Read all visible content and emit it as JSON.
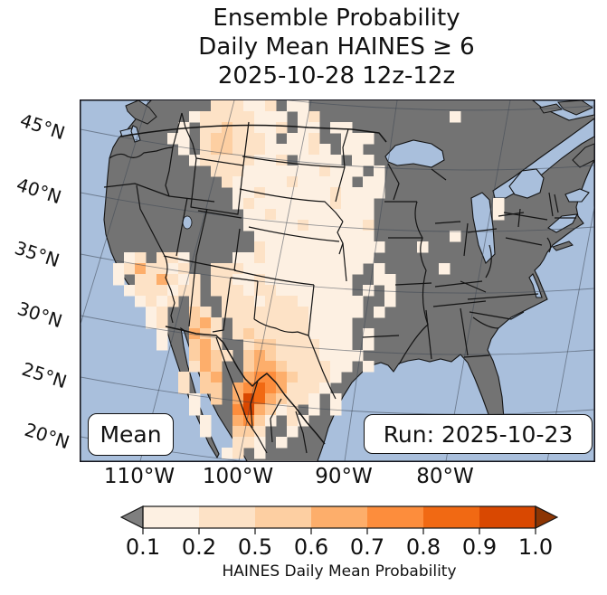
{
  "title": {
    "line1": "Ensemble Probability",
    "line2": "Daily Mean HAINES ≥ 6",
    "line3": "2025-10-28 12z-12z"
  },
  "map": {
    "mean_label": "Mean",
    "run_label": "Run: 2025-10-23",
    "lat_labels": [
      "45°N",
      "40°N",
      "35°N",
      "30°N",
      "25°N",
      "20°N"
    ],
    "lon_labels": [
      "110°W",
      "100°W",
      "90°W",
      "80°W"
    ]
  },
  "colorbar": {
    "caption": "HAINES Daily Mean Probability",
    "ticks": [
      "0.1",
      "0.2",
      "0.5",
      "0.6",
      "0.7",
      "0.8",
      "0.9",
      "1.0"
    ],
    "segment_colors": [
      "#fdf0e2",
      "#fde2c6",
      "#fdcfa2",
      "#fdae6b",
      "#fd8d3c",
      "#f16913",
      "#d94801"
    ],
    "under_color": "#7f7f7f",
    "over_color": "#8c3503"
  },
  "chart_data": {
    "type": "heatmap",
    "title": "Ensemble Probability Daily Mean HAINES ≥ 6",
    "valid_period": "2025-10-28 12z-12z",
    "model_run": "2025-10-23",
    "statistic": "Mean",
    "colorbar_label": "HAINES Daily Mean Probability",
    "colorbar_ticks": [
      0.1,
      0.2,
      0.5,
      0.6,
      0.7,
      0.8,
      0.9,
      1.0
    ],
    "bins": [
      {
        "range": [
          0.1,
          0.2
        ],
        "color": "#fdf0e2",
        "key": "a"
      },
      {
        "range": [
          0.2,
          0.5
        ],
        "color": "#fde2c6",
        "key": "b"
      },
      {
        "range": [
          0.5,
          0.6
        ],
        "color": "#fdcfa2",
        "key": "c"
      },
      {
        "range": [
          0.6,
          0.7
        ],
        "color": "#fdae6b",
        "key": "d"
      },
      {
        "range": [
          0.7,
          0.8
        ],
        "color": "#fd8d3c",
        "key": "e"
      },
      {
        "range": [
          0.8,
          0.9
        ],
        "color": "#f16913",
        "key": "f"
      },
      {
        "range": [
          0.9,
          1.0
        ],
        "color": "#d94801",
        "key": "g"
      }
    ],
    "under_color_below_0.1": "#7f7f7f",
    "over_color_above_1.0": "#8c3503",
    "lat_ticks_deg_n": [
      45,
      40,
      35,
      30,
      25,
      20
    ],
    "lon_ticks_deg_w": [
      110,
      100,
      90,
      80
    ],
    "map_colors": {
      "ocean": "#a9bfdc",
      "land_below_threshold": "#737373",
      "borders": "#141414"
    },
    "description": "Gridded probability cells over the western/central US and northern Mexico; maximum probabilities (0.8-1.0) over Big Bend region of west Texas / northern Mexico; widespread 0.1-0.5 over the plains from Montana to Texas; eastern US and west coast below 0.1 (gray).",
    "palette": {
      "a": "#fdf0e2",
      "b": "#fde2c6",
      "c": "#fdcfa2",
      "d": "#fdae6b",
      "e": "#fd8d3c",
      "f": "#f16913",
      "g": "#d94801"
    },
    "cell_size_px": 12,
    "grid": [
      "............bbbaab.aa..........................",
      "..........abbbbbaaa.ab............a............",
      ".........a.bbcbbaab.aa.aa......................",
      "........aa.bccbbba.aab..aaa....................",
      ".........a.bccbbbaaaaba.aa.....................",
      "..........abbbbbaab.aaaa.aa....................",
      "............bbbaaaaaaabaaa.a...................",
      ".............baaaaabaaaaa.aa...................",
      "..............aabaaaaaabaaaa...................",
      "..............abaaaaaaabaaa...........a........",
      "...............aabaaaaaaaaa...........a........",
      "...............aaaaabaaaaab....................",
      "................aaaaaaaaaaa.......a............",
      "................baaaaaaaaaaa...a...............",
      "....ab.bba....aabaaaaaaaaaa....................",
      "...abdbbab..bbbaaaaaaaaaaa.a.....a.............",
      "...a.bbdbab.bbaabaaaaaaaa..aa..................",
      "....abbbabb.bbbabbaaaaaaa.a.a..................",
      ".....abab.b..bbbabbbaaaaaa..a..................",
      "......ab..cb.bbbbbbbbaaaaa.a...................",
      "......ab..cdb.bbbbbbbaaaa......................",
      ".......a..dcb.bcbbbbbaaaa.a....................",
      ".......a..cdb..bccbbbbaaa.a....................",
      "..........cdcb.cdcbbbbaaaa.....................",
      "..........bdc..cddcbbbbaa.a....................",
      ".........b.cd..deedcbbba.......................",
      ".........b.cc.defedbbba........................",
      "..........a.c.dgfdcbba.a.......................",
      "..........a...egdcab.a.a.......................",
      "...........a..deca.ba..........................",
      "...........a..ccb..a...........................",
      "..............bba.a............................",
      ".............ab.a.............................."
    ]
  }
}
